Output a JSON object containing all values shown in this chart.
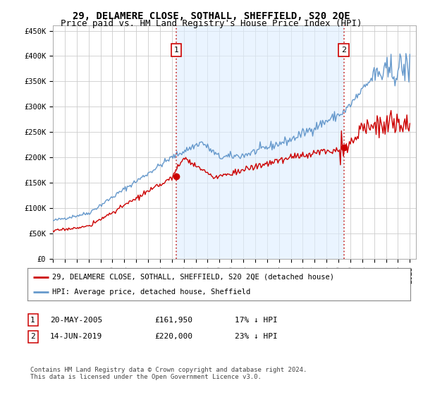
{
  "title": "29, DELAMERE CLOSE, SOTHALL, SHEFFIELD, S20 2QE",
  "subtitle": "Price paid vs. HM Land Registry's House Price Index (HPI)",
  "ylim": [
    0,
    460000
  ],
  "yticks": [
    0,
    50000,
    100000,
    150000,
    200000,
    250000,
    300000,
    350000,
    400000,
    450000
  ],
  "ytick_labels": [
    "£0",
    "£50K",
    "£100K",
    "£150K",
    "£200K",
    "£250K",
    "£300K",
    "£350K",
    "£400K",
    "£450K"
  ],
  "line1_color": "#cc0000",
  "line2_color": "#6699cc",
  "legend_line1": "29, DELAMERE CLOSE, SOTHALL, SHEFFIELD, S20 2QE (detached house)",
  "legend_line2": "HPI: Average price, detached house, Sheffield",
  "table_row1": [
    "1",
    "20-MAY-2005",
    "£161,950",
    "17% ↓ HPI"
  ],
  "table_row2": [
    "2",
    "14-JUN-2019",
    "£220,000",
    "23% ↓ HPI"
  ],
  "footnote": "Contains HM Land Registry data © Crown copyright and database right 2024.\nThis data is licensed under the Open Government Licence v3.0.",
  "bg_color": "#ffffff",
  "grid_color": "#cccccc",
  "title_fontsize": 10,
  "subtitle_fontsize": 9,
  "tick_fontsize": 7.5,
  "vline_color": "#cc4444",
  "vline_x1": 2005.37,
  "vline_x2": 2019.45,
  "shade_color": "#ddeeff",
  "marker1_price": 161950,
  "marker2_price": 220000
}
